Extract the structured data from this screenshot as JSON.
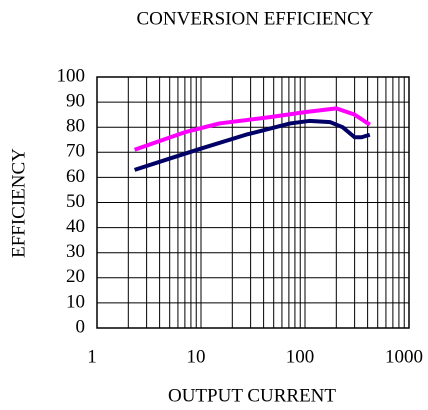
{
  "chart_data": {
    "type": "line",
    "title": "CONVERSION EFFICIENCY",
    "xlabel": "OUTPUT CURRENT",
    "ylabel": "EFFICIENCY",
    "xscale": "log",
    "xlim": [
      1,
      1000
    ],
    "xticks": [
      1,
      10,
      100,
      1000
    ],
    "ylim": [
      0,
      100
    ],
    "yticks": [
      0,
      10,
      20,
      30,
      40,
      50,
      60,
      70,
      80,
      90,
      100
    ],
    "grid": true,
    "series": [
      {
        "color": "#ff00ff",
        "x": [
          2.3,
          4,
          7,
          15,
          46,
          100,
          200,
          300,
          420
        ],
        "values": [
          71,
          74.5,
          78,
          81.5,
          84,
          86,
          87.5,
          85,
          81
        ]
      },
      {
        "color": "#000066",
        "x": [
          2.3,
          5,
          10,
          27,
          72,
          110,
          175,
          230,
          300,
          350,
          420
        ],
        "values": [
          63,
          67.5,
          71.5,
          77,
          81.5,
          82.5,
          82,
          80,
          76,
          76,
          77
        ]
      }
    ]
  }
}
